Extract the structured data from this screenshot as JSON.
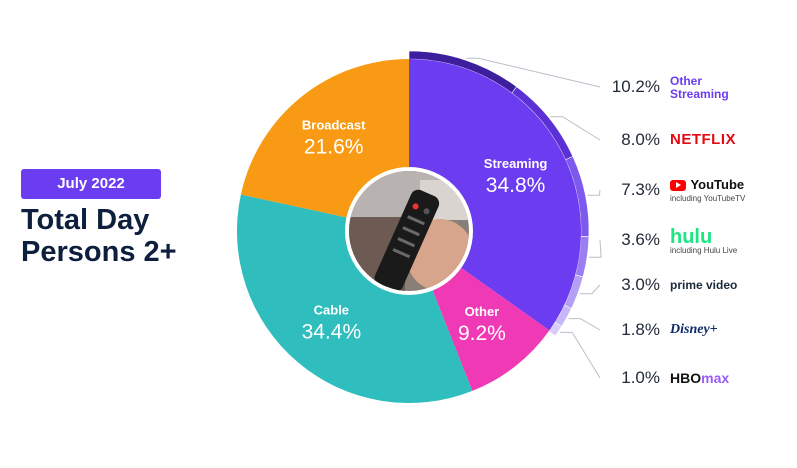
{
  "header": {
    "badge": "July 2022",
    "title_line1": "Total Day",
    "title_line2": "Persons 2+"
  },
  "colors": {
    "streaming": "#6b3cf0",
    "broadcast": "#f99a14",
    "cable": "#2fbdbd",
    "other": "#f03ab5",
    "accent": "#6b3cf0",
    "title": "#0d1f3c"
  },
  "chart_data": {
    "type": "pie",
    "style": "donut",
    "categories": [
      "Streaming",
      "Other",
      "Cable",
      "Broadcast"
    ],
    "values": [
      34.8,
      9.2,
      34.4,
      21.6
    ],
    "value_labels": [
      "34.8%",
      "9.2%",
      "34.4%",
      "21.6%"
    ],
    "breakdown": {
      "parent": "Streaming",
      "categories": [
        "Other Streaming",
        "NETFLIX",
        "YouTube",
        "hulu",
        "prime video",
        "Disney+",
        "HBO max"
      ],
      "values": [
        10.2,
        8.0,
        7.3,
        3.6,
        3.0,
        1.8,
        1.0
      ],
      "value_labels": [
        "10.2%",
        "8.0%",
        "7.3%",
        "3.6%",
        "3.0%",
        "1.8%",
        "1.0%"
      ],
      "sublabels": [
        "",
        "",
        "including YouTubeTV",
        "including Hulu Live",
        "",
        "",
        ""
      ]
    },
    "center_image": "remote-control-photo"
  }
}
